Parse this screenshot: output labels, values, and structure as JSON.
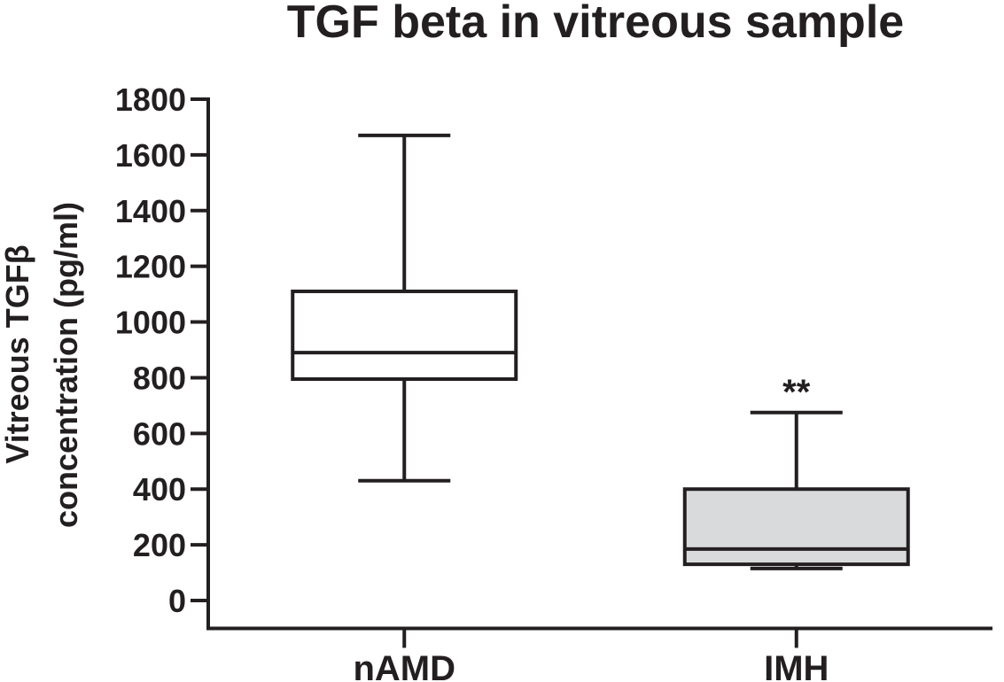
{
  "chart_data": {
    "type": "box",
    "title": "TGF beta in vitreous sample",
    "ylabel_lines": [
      "Vitreous TGFβ",
      "concentration (pg/ml)"
    ],
    "xlabel": "",
    "ylim": [
      -100,
      1800
    ],
    "yticks": [
      0,
      200,
      400,
      600,
      800,
      1000,
      1200,
      1400,
      1600,
      1800
    ],
    "grid": false,
    "categories": [
      "nAMD",
      "IMH"
    ],
    "boxes": [
      {
        "category": "nAMD",
        "min": 430,
        "q1": 795,
        "median": 890,
        "q3": 1110,
        "max": 1670,
        "fill": "#ffffff",
        "annotation": ""
      },
      {
        "category": "IMH",
        "min": 115,
        "q1": 130,
        "median": 185,
        "q3": 400,
        "max": 675,
        "fill": "#d9dadb",
        "annotation": "**"
      }
    ],
    "line_color": "#231f20"
  }
}
